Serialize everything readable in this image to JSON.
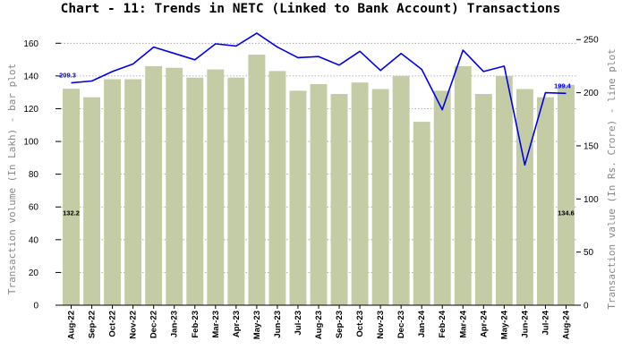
{
  "chart_data": {
    "type": "bar+line",
    "title": "Chart - 11: Trends in NETC (Linked to Bank Account) Transactions",
    "categories": [
      "Aug-22",
      "Sep-22",
      "Oct-22",
      "Nov-22",
      "Dec-22",
      "Jan-23",
      "Feb-23",
      "Mar-23",
      "Apr-23",
      "May-23",
      "Jun-23",
      "Jul-23",
      "Aug-23",
      "Sep-23",
      "Oct-23",
      "Nov-23",
      "Dec-23",
      "Jan-24",
      "Feb-24",
      "Mar-24",
      "Apr-24",
      "May-24",
      "Jun-24",
      "Jul-24",
      "Aug-24"
    ],
    "bar_series": {
      "name": "",
      "axis": "left",
      "color": "#c3cca4",
      "values": [
        132.2,
        127,
        138,
        138,
        146,
        145,
        139,
        144,
        139,
        153,
        143,
        131,
        135,
        129,
        136,
        132,
        140,
        112,
        131,
        146,
        129,
        140,
        132,
        127,
        134.6
      ]
    },
    "line_series": {
      "name": "",
      "axis": "right",
      "color": "#0000ee",
      "values": [
        209.3,
        211,
        220,
        227,
        243,
        237,
        231,
        246,
        244,
        256,
        243,
        233,
        234,
        226,
        239,
        221,
        237,
        222,
        184,
        240,
        220,
        225,
        132,
        200,
        199.4
      ]
    },
    "ylabel_left": "Transaction volume (In Lakh) - bar plot",
    "ylabel_right": "Transaction value (In Rs. Crore) - line plot",
    "ylim_left": [
      0,
      170
    ],
    "ylim_right": [
      0,
      262
    ],
    "yticks_left": [
      "0",
      "20",
      "40",
      "60",
      "80",
      "100",
      "120",
      "140",
      "160"
    ],
    "yticks_right": [
      "0",
      "50",
      "100",
      "150",
      "200",
      "250"
    ],
    "bar_data_labels": [
      {
        "index": 0,
        "text": "132.2"
      },
      {
        "index": 24,
        "text": "134.6"
      }
    ],
    "line_data_labels": [
      {
        "index": 0,
        "text": "209.3"
      },
      {
        "index": 24,
        "text": "199.4"
      }
    ],
    "grid": "horizontal dotted"
  }
}
